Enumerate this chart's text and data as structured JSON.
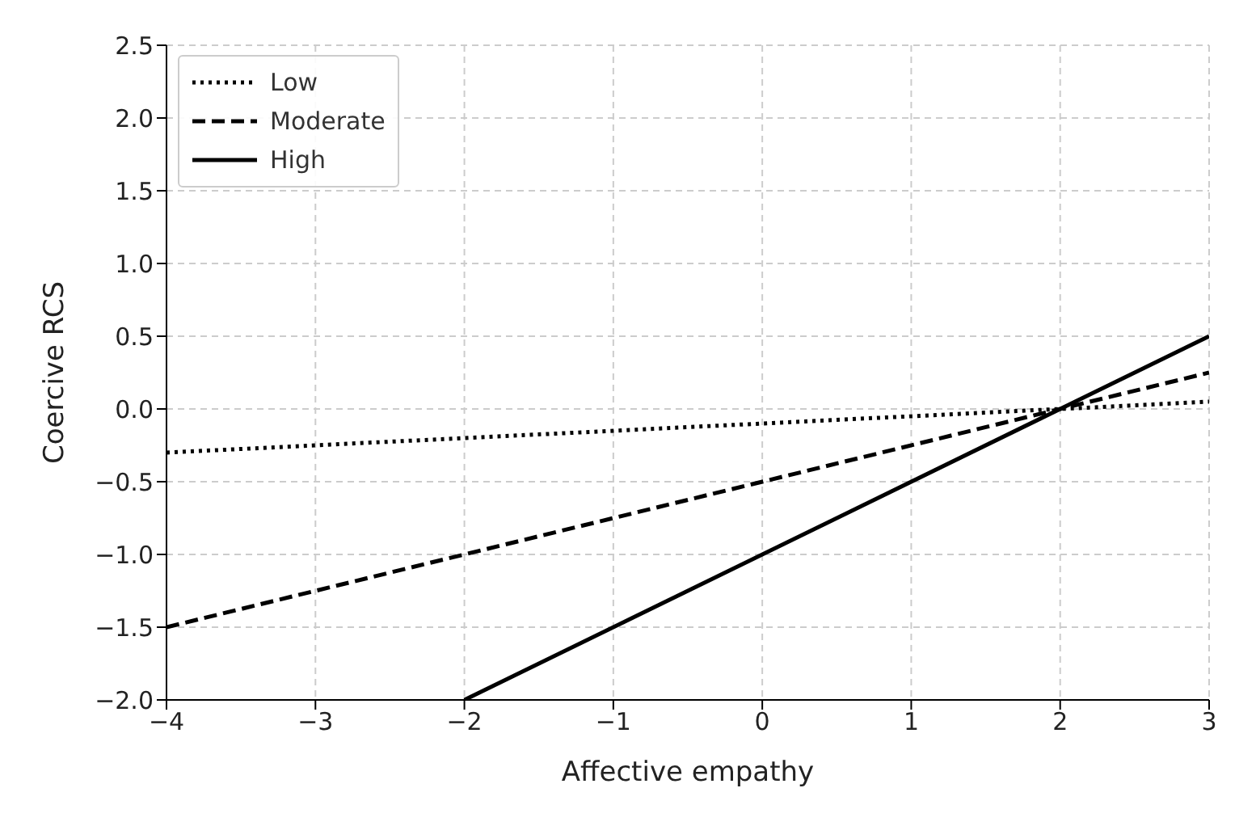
{
  "chart_data": {
    "type": "line",
    "xlabel": "Affective empathy",
    "ylabel": "Coercive RCS",
    "series": [
      {
        "name": "Low",
        "color": "#000000",
        "line_style": "dotted",
        "x": [
          -4,
          3
        ],
        "values": [
          -0.3,
          0.05
        ]
      },
      {
        "name": "Moderate",
        "color": "#000000",
        "line_style": "dashed",
        "x": [
          -4,
          3
        ],
        "values": [
          -1.5,
          0.25
        ]
      },
      {
        "name": "High",
        "color": "#000000",
        "line_style": "solid",
        "x": [
          -2,
          3
        ],
        "values": [
          -2,
          0.5
        ]
      }
    ],
    "xlim": [
      -4,
      3
    ],
    "xticks": [
      -4,
      -3,
      -2,
      -1,
      0,
      1,
      2,
      3
    ],
    "ylim": [
      -2,
      2.5
    ],
    "yticks": [
      {
        "value": -2,
        "label": "−2.0"
      },
      -1.5,
      {
        "value": -1,
        "label": "−1.0"
      },
      -0.5,
      {
        "value": 0,
        "label": "0.0"
      },
      0.5,
      {
        "value": 1,
        "label": "1.0"
      },
      1.5,
      {
        "value": 2,
        "label": "2.0"
      },
      2.5
    ],
    "grid": true,
    "legend": "top left",
    "marker": "none"
  }
}
